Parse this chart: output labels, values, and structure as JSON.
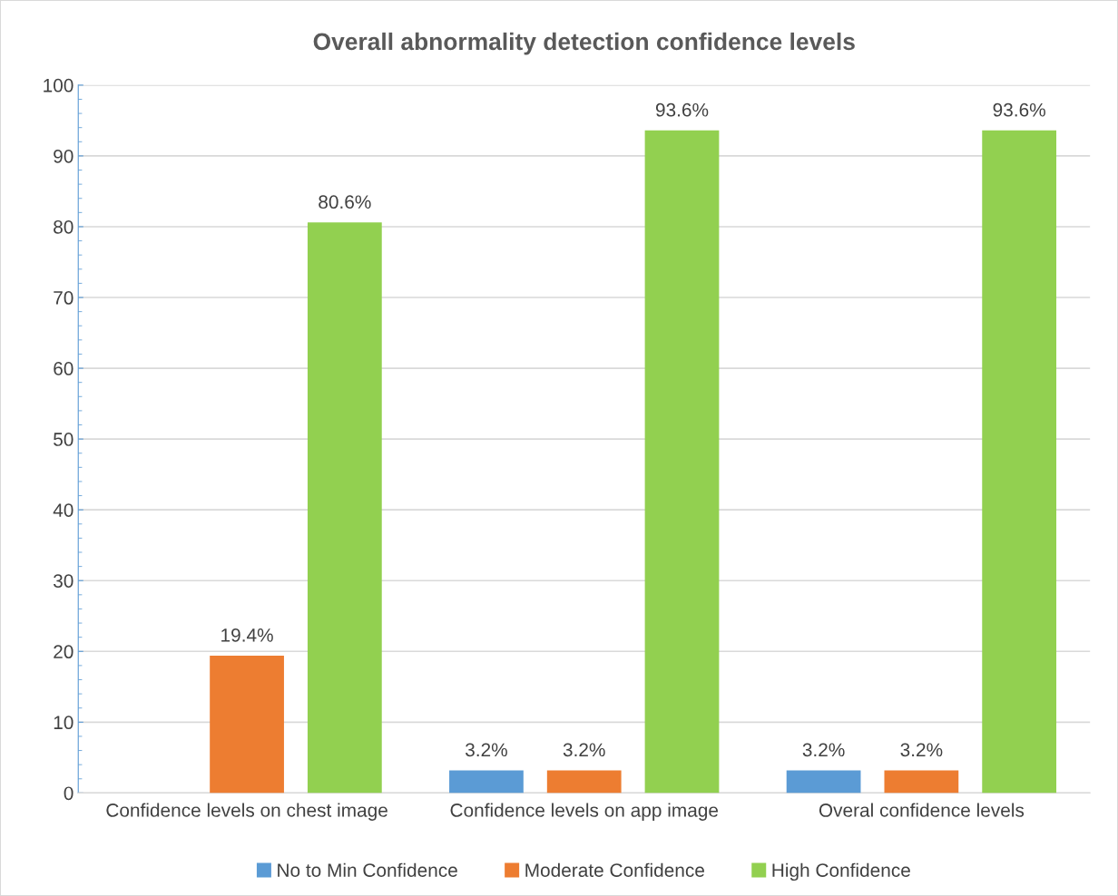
{
  "chart_data": {
    "type": "bar",
    "title": "Overall abnormality detection confidence levels",
    "categories": [
      "Confidence levels on chest image",
      "Confidence levels on app image",
      "Overal confidence levels"
    ],
    "series": [
      {
        "name": "No to Min Confidence",
        "color": "#5b9bd5",
        "values": [
          null,
          3.2,
          3.2
        ],
        "value_labels": [
          null,
          "3.2%",
          "3.2%"
        ]
      },
      {
        "name": "Moderate Confidence",
        "color": "#ed7d31",
        "values": [
          19.4,
          3.2,
          3.2
        ],
        "value_labels": [
          "19.4%",
          "3.2%",
          "3.2%"
        ]
      },
      {
        "name": "High Confidence",
        "color": "#92d050",
        "values": [
          80.6,
          93.6,
          93.6
        ],
        "value_labels": [
          "80.6%",
          "93.6%",
          "93.6%"
        ]
      }
    ],
    "ylim": [
      0,
      100
    ],
    "yticks": [
      0,
      10,
      20,
      30,
      40,
      50,
      60,
      70,
      80,
      90,
      100
    ],
    "grid": "y",
    "legend": "bottom"
  }
}
